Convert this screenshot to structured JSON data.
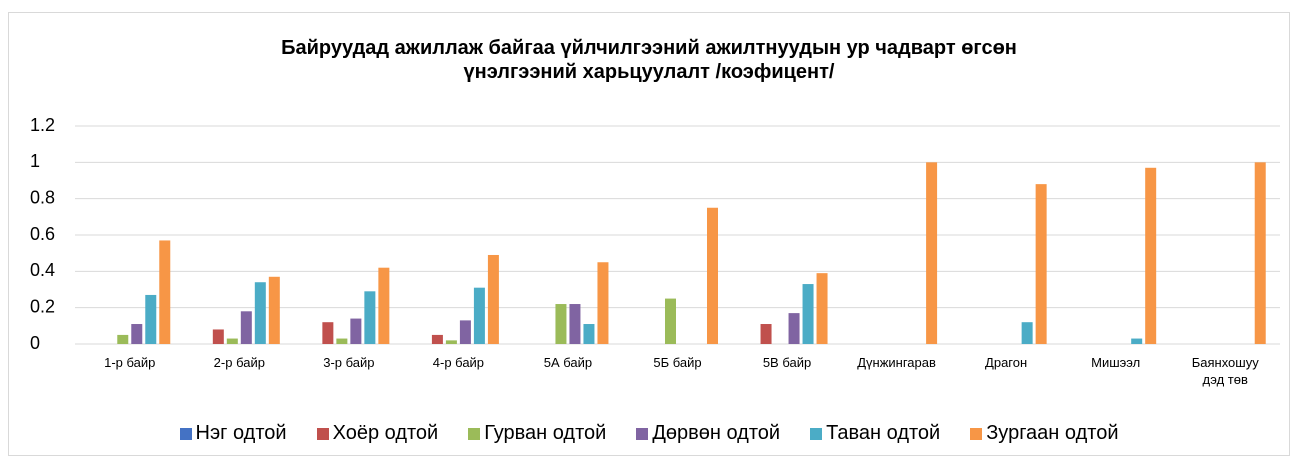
{
  "chart_data": {
    "type": "bar",
    "title": "Байруудад ажиллаж байгаа үйлчилгээний ажилтнуудын ур чадварт өгсөн үнэлгээний харьцуулалт /коэфицент/",
    "categories": [
      "1-р байр",
      "2-р байр",
      "3-р байр",
      "4-р байр",
      "5А байр",
      "5Б байр",
      "5В байр",
      "Дүнжингарав",
      "Драгон",
      "Мишээл",
      "Баянхошуу дэд төв"
    ],
    "series": [
      {
        "name": "Нэг одтой",
        "color": "#4472c4",
        "values": [
          0,
          0,
          0,
          0,
          0,
          0,
          0,
          0,
          0,
          0,
          0
        ]
      },
      {
        "name": "Хоёр одтой",
        "color": "#c0504d",
        "values": [
          0,
          0.08,
          0.12,
          0.05,
          0,
          0,
          0.11,
          0,
          0,
          0,
          0
        ]
      },
      {
        "name": "Гурван одтой",
        "color": "#9bbb59",
        "values": [
          0.05,
          0.03,
          0.03,
          0.02,
          0.22,
          0.25,
          0,
          0,
          0,
          0,
          0
        ]
      },
      {
        "name": "Дөрвөн одтой",
        "color": "#8064a2",
        "values": [
          0.11,
          0.18,
          0.14,
          0.13,
          0.22,
          0,
          0.17,
          0,
          0,
          0,
          0
        ]
      },
      {
        "name": "Таван одтой",
        "color": "#4bacc6",
        "values": [
          0.27,
          0.34,
          0.29,
          0.31,
          0.11,
          0,
          0.33,
          0,
          0.12,
          0.03,
          0
        ]
      },
      {
        "name": "Зургаан одтой",
        "color": "#f79646",
        "values": [
          0.57,
          0.37,
          0.42,
          0.49,
          0.45,
          0.75,
          0.39,
          1,
          0.88,
          0.97,
          1
        ]
      }
    ],
    "ylim": [
      0,
      1.2
    ],
    "yticks": [
      0,
      0.2,
      0.4,
      0.6,
      0.8,
      1,
      1.2
    ],
    "grid": true,
    "legend": "bottom"
  }
}
